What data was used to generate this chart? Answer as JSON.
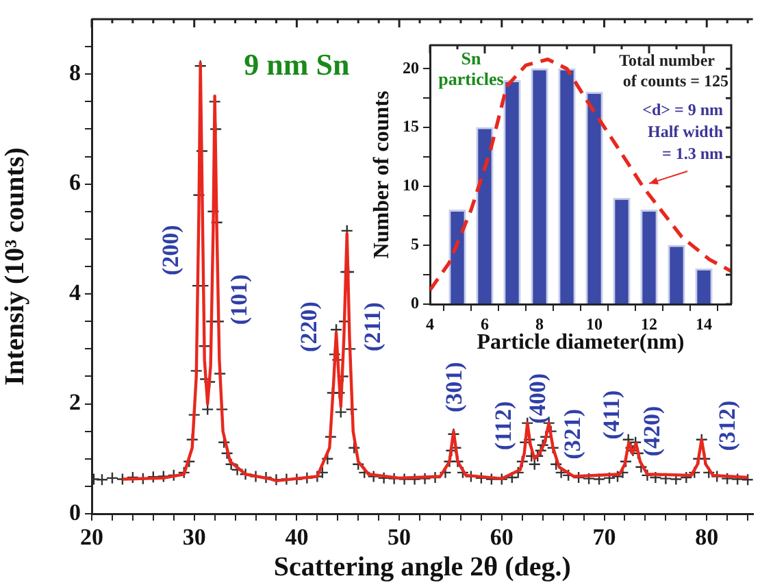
{
  "chart_data": [
    {
      "type": "scatter",
      "title": "9 nm Sn",
      "xlabel": "Scattering angle 2θ (deg.)",
      "ylabel": "Intensiy (10³ counts)",
      "xlim": [
        20,
        84.5
      ],
      "ylim": [
        0,
        9
      ],
      "xticks": [
        20,
        {
          "value": 22,
          "label": null
        },
        {
          "value": 24,
          "label": null
        },
        {
          "value": 26,
          "label": null
        },
        {
          "value": 28,
          "label": null
        },
        30,
        {
          "value": 32,
          "label": null
        },
        {
          "value": 34,
          "label": null
        },
        {
          "value": 36,
          "label": null
        },
        {
          "value": 38,
          "label": null
        },
        40,
        {
          "value": 42,
          "label": null
        },
        {
          "value": 44,
          "label": null
        },
        {
          "value": 46,
          "label": null
        },
        {
          "value": 48,
          "label": null
        },
        50,
        {
          "value": 52,
          "label": null
        },
        {
          "value": 54,
          "label": null
        },
        {
          "value": 56,
          "label": null
        },
        {
          "value": 58,
          "label": null
        },
        60,
        {
          "value": 62,
          "label": null
        },
        {
          "value": 64,
          "label": null
        },
        {
          "value": 66,
          "label": null
        },
        {
          "value": 68,
          "label": null
        },
        70,
        {
          "value": 72,
          "label": null
        },
        {
          "value": 74,
          "label": null
        },
        {
          "value": 76,
          "label": null
        },
        {
          "value": 78,
          "label": null
        },
        80,
        {
          "value": 82,
          "label": null
        },
        {
          "value": 84,
          "label": null
        }
      ],
      "yticks": [
        0,
        {
          "value": 0.5,
          "label": null
        },
        {
          "value": 1,
          "label": null
        },
        {
          "value": 1.5,
          "label": null
        },
        2,
        {
          "value": 2.5,
          "label": null
        },
        {
          "value": 3,
          "label": null
        },
        {
          "value": 3.5,
          "label": null
        },
        4,
        {
          "value": 4.5,
          "label": null
        },
        {
          "value": 5,
          "label": null
        },
        {
          "value": 5.5,
          "label": null
        },
        6,
        {
          "value": 6.5,
          "label": null
        },
        {
          "value": 7,
          "label": null
        },
        {
          "value": 7.5,
          "label": null
        },
        8,
        {
          "value": 8.5,
          "label": null
        }
      ],
      "grid": false,
      "legend": false,
      "series": [
        {
          "type": "scatter",
          "marker": "cross",
          "color": "#333333",
          "x": [
            20.2,
            21,
            22,
            23,
            24,
            25,
            26,
            27,
            28,
            29,
            29.5,
            29.8,
            30,
            30.2,
            30.35,
            30.45,
            30.6,
            30.75,
            30.85,
            31,
            31.1,
            31.3,
            31.5,
            31.7,
            31.85,
            32,
            32.1,
            32.2,
            32.35,
            32.5,
            32.7,
            32.9,
            33.2,
            33.6,
            34.2,
            35,
            36,
            37,
            38,
            39,
            40,
            41,
            42,
            42.5,
            43,
            43.3,
            43.5,
            43.7,
            43.85,
            44,
            44.15,
            44.3,
            44.5,
            44.65,
            44.8,
            44.9,
            45.05,
            45.2,
            45.35,
            45.6,
            46,
            46.6,
            47.5,
            48.5,
            49.5,
            50.5,
            51.5,
            52.5,
            53.5,
            54.5,
            54.9,
            55.1,
            55.3,
            55.5,
            55.7,
            56.2,
            57,
            58,
            59,
            60,
            61,
            61.6,
            62,
            62.3,
            62.5,
            62.7,
            62.9,
            63.2,
            63.5,
            63.8,
            64,
            64.3,
            64.6,
            64.8,
            65,
            65.3,
            65.8,
            66.5,
            67.5,
            68.5,
            69.5,
            70.5,
            71.3,
            71.8,
            72.1,
            72.35,
            72.6,
            72.8,
            73.05,
            73.3,
            73.6,
            74.2,
            75,
            76,
            77,
            78,
            78.8,
            79.2,
            79.5,
            79.8,
            80.2,
            81,
            82,
            83,
            84
          ],
          "values": [
            0.63,
            0.62,
            0.65,
            0.63,
            0.66,
            0.64,
            0.67,
            0.68,
            0.7,
            0.75,
            0.95,
            1.35,
            1.8,
            2.6,
            4.15,
            5.8,
            8.15,
            6.6,
            4.15,
            3.05,
            2.45,
            1.9,
            2.4,
            3.5,
            5.5,
            7.5,
            7,
            5.3,
            3.5,
            2.55,
            1.9,
            1.3,
            1.1,
            0.9,
            0.8,
            0.72,
            0.68,
            0.66,
            0.62,
            0.63,
            0.63,
            0.65,
            0.68,
            0.75,
            1,
            1.4,
            2.2,
            2.9,
            3.35,
            2.8,
            2.2,
            1.85,
            2.5,
            3.5,
            4.4,
            5.15,
            4.4,
            3,
            1.9,
            1.2,
            0.9,
            0.75,
            0.68,
            0.65,
            0.64,
            0.63,
            0.63,
            0.64,
            0.66,
            0.75,
            0.95,
            1.15,
            1.45,
            1.2,
            0.95,
            0.75,
            0.68,
            0.65,
            0.63,
            0.63,
            0.66,
            0.75,
            0.95,
            1.3,
            1.65,
            1.35,
            1.05,
            0.9,
            1.05,
            1.15,
            1.25,
            1.4,
            1.65,
            1.5,
            1.2,
            0.9,
            0.75,
            0.7,
            0.66,
            0.64,
            0.63,
            0.65,
            0.68,
            0.75,
            0.95,
            1.35,
            1.2,
            1.15,
            1.3,
            1.1,
            0.85,
            0.7,
            0.66,
            0.64,
            0.63,
            0.66,
            0.75,
            1,
            1.35,
            1,
            0.75,
            0.68,
            0.64,
            0.63,
            0.62
          ]
        },
        {
          "type": "line",
          "marker": "none",
          "color": "#e8281e",
          "x": [
            23,
            27,
            29,
            29.8,
            30.2,
            30.45,
            30.6,
            30.8,
            31,
            31.3,
            31.6,
            31.85,
            32,
            32.2,
            32.45,
            32.8,
            33.5,
            35,
            37.5,
            38,
            42,
            43.2,
            43.6,
            43.85,
            44.1,
            44.3,
            44.6,
            44.9,
            45.15,
            45.5,
            46,
            47,
            50,
            54,
            54.9,
            55.3,
            55.7,
            56.5,
            60,
            61.8,
            62.2,
            62.5,
            62.8,
            63.2,
            63.7,
            64.2,
            64.6,
            65,
            65.6,
            67,
            71.5,
            72,
            72.4,
            72.75,
            73.1,
            73.5,
            74.2,
            78.5,
            79.1,
            79.5,
            79.9,
            80.6,
            84
          ],
          "values": [
            0.63,
            0.65,
            0.72,
            1.2,
            2.5,
            5.5,
            8.2,
            5.5,
            2.8,
            2,
            2.7,
            5.2,
            7.6,
            5.2,
            2.8,
            1.5,
            0.95,
            0.72,
            0.63,
            0.6,
            0.68,
            1.2,
            2.4,
            3.3,
            2.5,
            1.95,
            3.2,
            5.1,
            3.2,
            1.5,
            0.95,
            0.72,
            0.65,
            0.68,
            0.95,
            1.5,
            0.95,
            0.7,
            0.64,
            0.8,
            1.1,
            1.65,
            1.25,
            1,
            1.1,
            1.3,
            1.65,
            1.2,
            0.85,
            0.68,
            0.72,
            0.9,
            1.3,
            1.1,
            1.28,
            0.95,
            0.72,
            0.7,
            0.9,
            1.35,
            0.9,
            0.7,
            0.66
          ]
        }
      ],
      "annotations": [
        "(200)",
        "(101)",
        "(220)",
        "(211)",
        "(301)",
        "(112)",
        "(400)",
        "(321)",
        "(411)",
        "(420)",
        "(312)"
      ]
    },
    {
      "type": "bar",
      "title": "Sn\nparticles",
      "xlabel": "Particle diameter(nm)",
      "ylabel": "Number of counts",
      "xlim": [
        4,
        15
      ],
      "ylim": [
        0,
        22
      ],
      "xticks": [
        4,
        {
          "value": 5,
          "label": null
        },
        6,
        {
          "value": 7,
          "label": null
        },
        8,
        {
          "value": 9,
          "label": null
        },
        10,
        {
          "value": 11,
          "label": null
        },
        12,
        {
          "value": 13,
          "label": null
        },
        14
      ],
      "yticks": [
        0,
        {
          "value": 2.5,
          "label": null
        },
        5,
        {
          "value": 7.5,
          "label": null
        },
        10,
        {
          "value": 12.5,
          "label": null
        },
        15,
        {
          "value": 17.5,
          "label": null
        },
        20
      ],
      "grid": false,
      "legend": false,
      "series": [
        {
          "type": "bar",
          "color": "#3b4aa6",
          "x": [
            5,
            6,
            7,
            8,
            9,
            10,
            11,
            12,
            13,
            14
          ],
          "values": [
            8,
            15,
            19,
            20,
            20,
            18,
            9,
            8,
            5,
            3
          ]
        },
        {
          "type": "line",
          "line_style": "dashed",
          "color": "#e8281e",
          "x": [
            4,
            4.7,
            5.5,
            6.2,
            6.8,
            7.5,
            8.3,
            9,
            9.7,
            10.8,
            11.8,
            13.2,
            14.2,
            15
          ],
          "values": [
            1.2,
            3.5,
            8,
            13,
            18.5,
            20.3,
            20.8,
            20,
            17.4,
            13.5,
            9.9,
            5.7,
            3.8,
            2.8
          ]
        }
      ],
      "annotations": [
        "Total number\nof counts = 125",
        {
          "text": "<d> = 9 nm\nHalf width\n= 1.3 nm",
          "x": 11.8,
          "y": 9.9
        }
      ]
    }
  ]
}
